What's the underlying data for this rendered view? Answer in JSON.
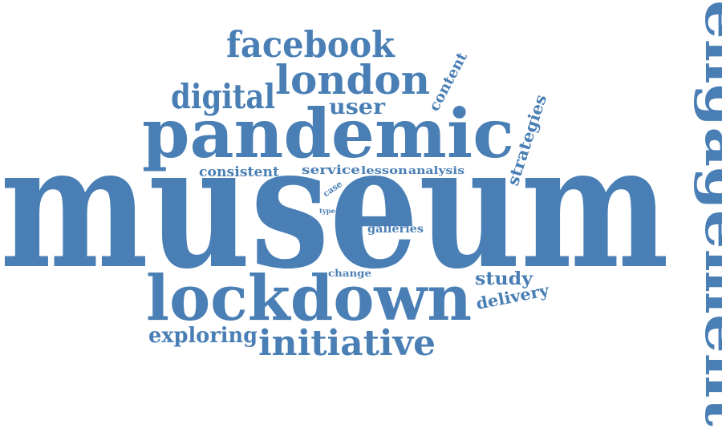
{
  "cloud": {
    "color": "#4a7fb5",
    "words": {
      "museum": "museum",
      "pandemic": "pandemic",
      "lockdown": "lockdown",
      "engagement": "engagement",
      "london": "london",
      "facebook": "facebook",
      "digital": "digital",
      "initiative": "initiative",
      "exploring": "exploring",
      "user": "user",
      "content": "content",
      "strategies": "strategies",
      "consistent": "consistent",
      "service": "service",
      "lesson": "lesson",
      "analysis": "analysis",
      "case": "case",
      "type": "type",
      "galleries": "galleries",
      "change": "change",
      "study": "study",
      "delivery": "delivery"
    }
  }
}
